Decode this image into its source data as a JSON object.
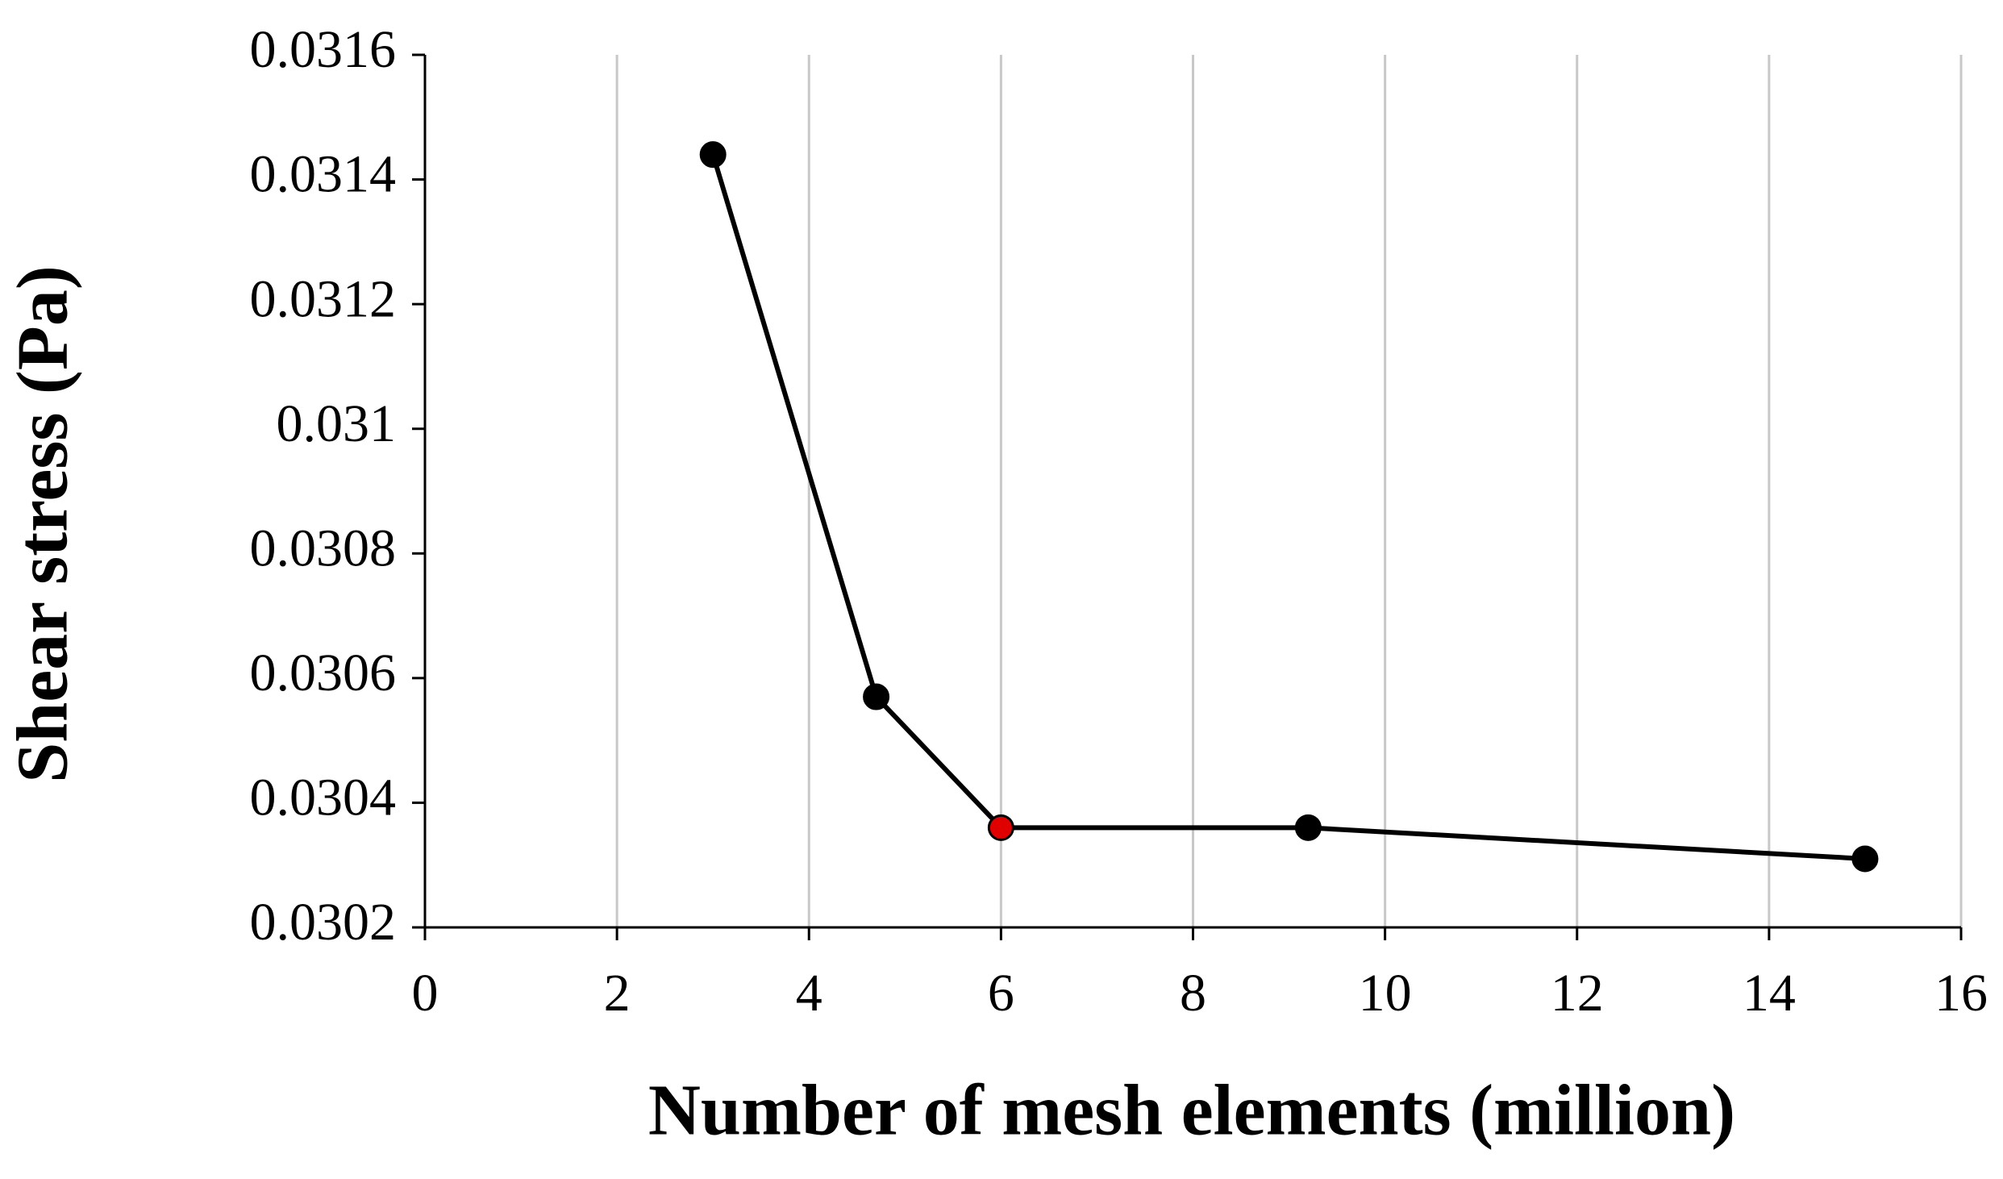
{
  "chart_data": {
    "type": "line",
    "x_label": "Number  of mesh  elements (million)",
    "y_label": "Shear stress (Pa)",
    "x": [
      3,
      4.7,
      6,
      9.2,
      15
    ],
    "series": [
      {
        "color": "#000000",
        "values": [
          0.03144,
          0.03057,
          0.03036,
          0.03036,
          0.03031
        ],
        "marker_colors": [
          "#000000",
          "#000000",
          "#e00000",
          "#000000",
          "#000000"
        ]
      }
    ],
    "xlim": [
      0,
      16
    ],
    "xticks": [
      0,
      2,
      4,
      6,
      8,
      10,
      12,
      14,
      16
    ],
    "ylim": [
      0.0302,
      0.0316
    ],
    "yticks": [
      0.0302,
      0.0304,
      0.0306,
      0.0308,
      0.031,
      0.0312,
      0.0314,
      0.0316
    ],
    "grid": "x"
  }
}
